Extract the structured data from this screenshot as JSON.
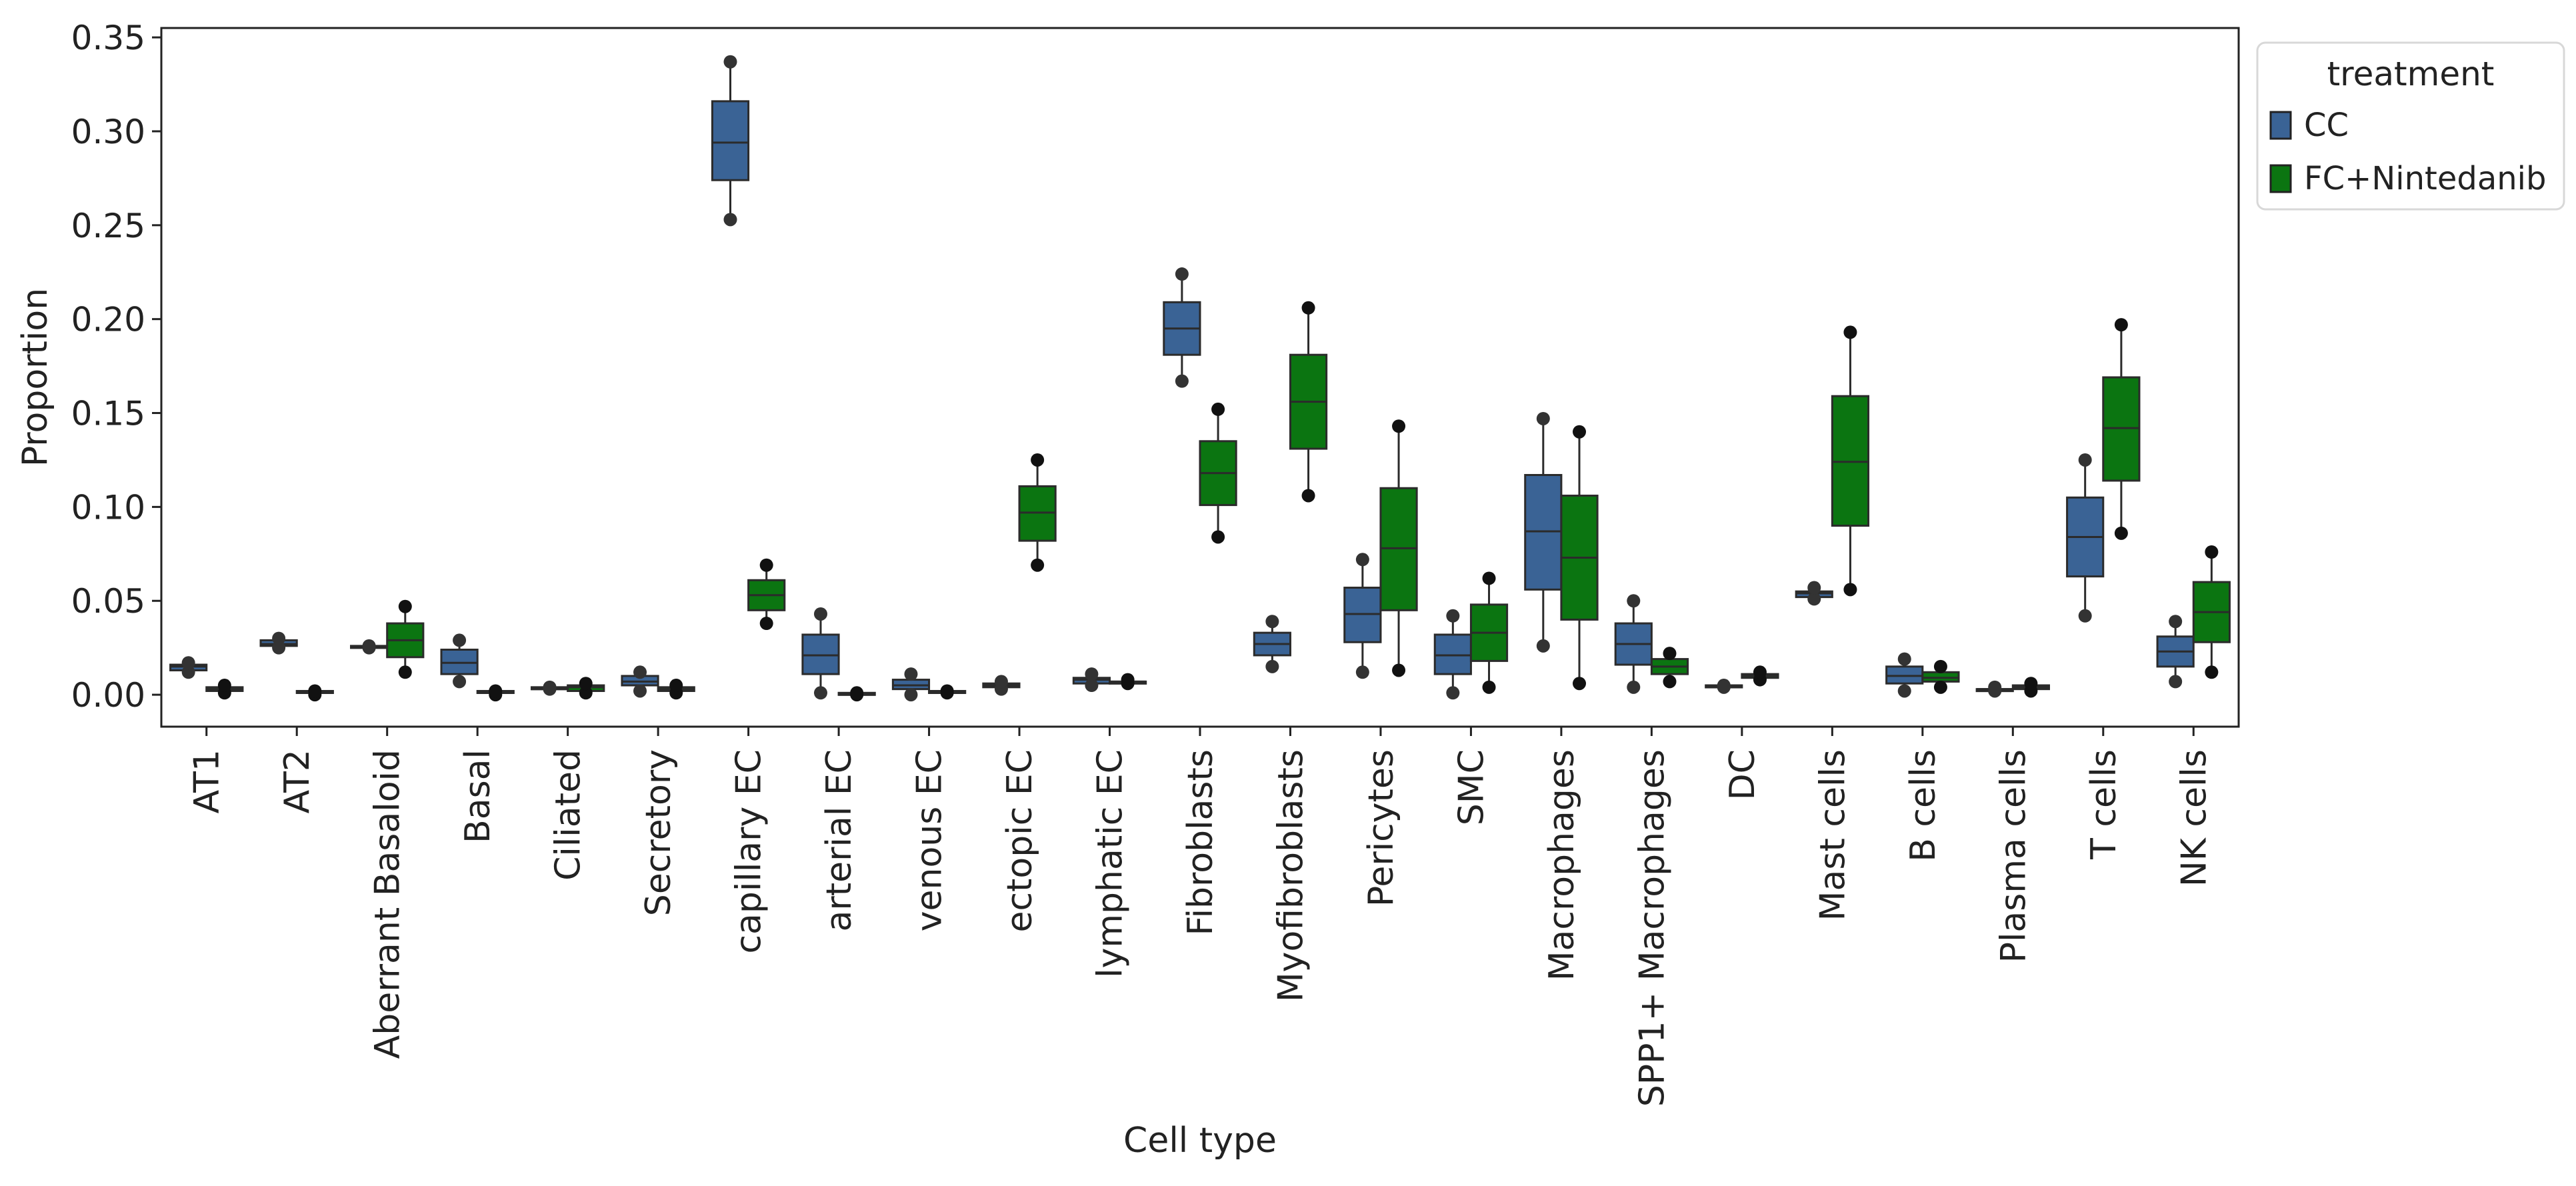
{
  "chart_data": {
    "type": "box",
    "xlabel": "Cell type",
    "ylabel": "Proportion",
    "ylim": [
      -0.017,
      0.355
    ],
    "yticks": [
      "0.00",
      "0.05",
      "0.10",
      "0.15",
      "0.20",
      "0.25",
      "0.30",
      "0.35"
    ],
    "legend": {
      "title": "treatment",
      "placement": "outside-top-right",
      "entries": [
        {
          "name": "CC",
          "color": "#3a6395"
        },
        {
          "name": "FC+Nintedanib",
          "color": "#0b7511"
        }
      ]
    },
    "categories": [
      "AT1",
      "AT2",
      "Aberrant Basaloid",
      "Basal",
      "Ciliated",
      "Secretory",
      "capillary EC",
      "arterial EC",
      "venous EC",
      "ectopic EC",
      "lymphatic EC",
      "Fibroblasts",
      "Myofibroblasts",
      "Pericytes",
      "SMC",
      "Macrophages",
      "SPP1+ Macrophages",
      "DC",
      "Mast cells",
      "B cells",
      "Plasma cells",
      "T cells",
      "NK cells"
    ],
    "series": [
      {
        "name": "CC",
        "color": "#3a6395",
        "boxes": [
          {
            "min": 0.012,
            "q1": 0.013,
            "median": 0.015,
            "q3": 0.016,
            "max": 0.017,
            "points": [
              0.012,
              0.017
            ]
          },
          {
            "min": 0.025,
            "q1": 0.026,
            "median": 0.027,
            "q3": 0.029,
            "max": 0.03,
            "points": [
              0.025,
              0.03
            ]
          },
          {
            "min": 0.025,
            "q1": 0.025,
            "median": 0.025,
            "q3": 0.026,
            "max": 0.026,
            "points": [
              0.025,
              0.026
            ]
          },
          {
            "min": 0.007,
            "q1": 0.011,
            "median": 0.017,
            "q3": 0.024,
            "max": 0.029,
            "points": [
              0.007,
              0.029
            ]
          },
          {
            "min": 0.003,
            "q1": 0.003,
            "median": 0.003,
            "q3": 0.004,
            "max": 0.004,
            "points": [
              0.003,
              0.004
            ]
          },
          {
            "min": 0.002,
            "q1": 0.005,
            "median": 0.007,
            "q3": 0.01,
            "max": 0.012,
            "points": [
              0.002,
              0.012
            ]
          },
          {
            "min": 0.253,
            "q1": 0.274,
            "median": 0.294,
            "q3": 0.316,
            "max": 0.337,
            "points": [
              0.253,
              0.337
            ]
          },
          {
            "min": 0.001,
            "q1": 0.011,
            "median": 0.021,
            "q3": 0.032,
            "max": 0.043,
            "points": [
              0.001,
              0.043
            ]
          },
          {
            "min": 0.0,
            "q1": 0.003,
            "median": 0.005,
            "q3": 0.008,
            "max": 0.011,
            "points": [
              0.0,
              0.011
            ]
          },
          {
            "min": 0.003,
            "q1": 0.004,
            "median": 0.005,
            "q3": 0.006,
            "max": 0.007,
            "points": [
              0.003,
              0.007
            ]
          },
          {
            "min": 0.005,
            "q1": 0.006,
            "median": 0.008,
            "q3": 0.009,
            "max": 0.011,
            "points": [
              0.005,
              0.011
            ]
          },
          {
            "min": 0.167,
            "q1": 0.181,
            "median": 0.195,
            "q3": 0.209,
            "max": 0.224,
            "points": [
              0.167,
              0.224
            ]
          },
          {
            "min": 0.015,
            "q1": 0.021,
            "median": 0.027,
            "q3": 0.033,
            "max": 0.039,
            "points": [
              0.015,
              0.039
            ]
          },
          {
            "min": 0.012,
            "q1": 0.028,
            "median": 0.043,
            "q3": 0.057,
            "max": 0.072,
            "points": [
              0.012,
              0.072
            ]
          },
          {
            "min": 0.001,
            "q1": 0.011,
            "median": 0.021,
            "q3": 0.032,
            "max": 0.042,
            "points": [
              0.001,
              0.042
            ]
          },
          {
            "min": 0.026,
            "q1": 0.056,
            "median": 0.087,
            "q3": 0.117,
            "max": 0.147,
            "points": [
              0.026,
              0.147
            ]
          },
          {
            "min": 0.004,
            "q1": 0.016,
            "median": 0.027,
            "q3": 0.038,
            "max": 0.05,
            "points": [
              0.004,
              0.05
            ]
          },
          {
            "min": 0.004,
            "q1": 0.004,
            "median": 0.005,
            "q3": 0.005,
            "max": 0.005,
            "points": [
              0.004,
              0.005
            ]
          },
          {
            "min": 0.051,
            "q1": 0.052,
            "median": 0.054,
            "q3": 0.055,
            "max": 0.057,
            "points": [
              0.051,
              0.057
            ]
          },
          {
            "min": 0.002,
            "q1": 0.006,
            "median": 0.01,
            "q3": 0.015,
            "max": 0.019,
            "points": [
              0.002,
              0.019
            ]
          },
          {
            "min": 0.002,
            "q1": 0.002,
            "median": 0.003,
            "q3": 0.003,
            "max": 0.004,
            "points": [
              0.002,
              0.004
            ]
          },
          {
            "min": 0.042,
            "q1": 0.063,
            "median": 0.084,
            "q3": 0.105,
            "max": 0.125,
            "points": [
              0.042,
              0.125
            ]
          },
          {
            "min": 0.007,
            "q1": 0.015,
            "median": 0.023,
            "q3": 0.031,
            "max": 0.039,
            "points": [
              0.007,
              0.039
            ]
          }
        ]
      },
      {
        "name": "FC+Nintedanib",
        "color": "#0b7511",
        "boxes": [
          {
            "min": 0.001,
            "q1": 0.002,
            "median": 0.003,
            "q3": 0.004,
            "max": 0.005,
            "points": [
              0.001,
              0.005
            ]
          },
          {
            "min": 0.0,
            "q1": 0.001,
            "median": 0.001,
            "q3": 0.002,
            "max": 0.002,
            "points": [
              0.0,
              0.002
            ]
          },
          {
            "min": 0.012,
            "q1": 0.02,
            "median": 0.029,
            "q3": 0.038,
            "max": 0.047,
            "points": [
              0.012,
              0.047
            ]
          },
          {
            "min": 0.0,
            "q1": 0.001,
            "median": 0.001,
            "q3": 0.002,
            "max": 0.002,
            "points": [
              0.0,
              0.002
            ]
          },
          {
            "min": 0.001,
            "q1": 0.002,
            "median": 0.004,
            "q3": 0.005,
            "max": 0.006,
            "points": [
              0.001,
              0.006
            ]
          },
          {
            "min": 0.001,
            "q1": 0.002,
            "median": 0.003,
            "q3": 0.004,
            "max": 0.005,
            "points": [
              0.001,
              0.005
            ]
          },
          {
            "min": 0.038,
            "q1": 0.045,
            "median": 0.053,
            "q3": 0.061,
            "max": 0.069,
            "points": [
              0.038,
              0.069
            ]
          },
          {
            "min": 0.0,
            "q1": 0.0,
            "median": 0.0,
            "q3": 0.001,
            "max": 0.001,
            "points": [
              0.0,
              0.001
            ]
          },
          {
            "min": 0.001,
            "q1": 0.001,
            "median": 0.001,
            "q3": 0.002,
            "max": 0.002,
            "points": [
              0.001,
              0.002
            ]
          },
          {
            "min": 0.069,
            "q1": 0.082,
            "median": 0.097,
            "q3": 0.111,
            "max": 0.125,
            "points": [
              0.069,
              0.125
            ]
          },
          {
            "min": 0.006,
            "q1": 0.006,
            "median": 0.007,
            "q3": 0.007,
            "max": 0.008,
            "points": [
              0.006,
              0.008
            ]
          },
          {
            "min": 0.084,
            "q1": 0.101,
            "median": 0.118,
            "q3": 0.135,
            "max": 0.152,
            "points": [
              0.084,
              0.152
            ]
          },
          {
            "min": 0.106,
            "q1": 0.131,
            "median": 0.156,
            "q3": 0.181,
            "max": 0.206,
            "points": [
              0.106,
              0.206
            ]
          },
          {
            "min": 0.013,
            "q1": 0.045,
            "median": 0.078,
            "q3": 0.11,
            "max": 0.143,
            "points": [
              0.013,
              0.143
            ]
          },
          {
            "min": 0.004,
            "q1": 0.018,
            "median": 0.033,
            "q3": 0.048,
            "max": 0.062,
            "points": [
              0.004,
              0.062
            ]
          },
          {
            "min": 0.006,
            "q1": 0.04,
            "median": 0.073,
            "q3": 0.106,
            "max": 0.14,
            "points": [
              0.006,
              0.14
            ]
          },
          {
            "min": 0.007,
            "q1": 0.011,
            "median": 0.015,
            "q3": 0.019,
            "max": 0.022,
            "points": [
              0.007,
              0.022
            ]
          },
          {
            "min": 0.008,
            "q1": 0.009,
            "median": 0.01,
            "q3": 0.011,
            "max": 0.012,
            "points": [
              0.008,
              0.012
            ]
          },
          {
            "min": 0.056,
            "q1": 0.09,
            "median": 0.124,
            "q3": 0.159,
            "max": 0.193,
            "points": [
              0.056,
              0.193
            ]
          },
          {
            "min": 0.004,
            "q1": 0.007,
            "median": 0.009,
            "q3": 0.012,
            "max": 0.015,
            "points": [
              0.004,
              0.015
            ]
          },
          {
            "min": 0.002,
            "q1": 0.003,
            "median": 0.004,
            "q3": 0.005,
            "max": 0.006,
            "points": [
              0.002,
              0.006
            ]
          },
          {
            "min": 0.086,
            "q1": 0.114,
            "median": 0.142,
            "q3": 0.169,
            "max": 0.197,
            "points": [
              0.086,
              0.197
            ]
          },
          {
            "min": 0.012,
            "q1": 0.028,
            "median": 0.044,
            "q3": 0.06,
            "max": 0.076,
            "points": [
              0.012,
              0.076
            ]
          }
        ]
      }
    ]
  }
}
